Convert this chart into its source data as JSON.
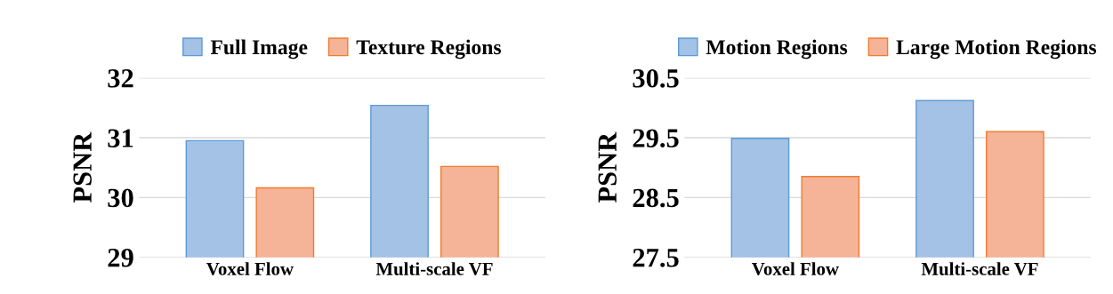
{
  "chart_data": [
    {
      "type": "bar",
      "ylabel": "PSNR",
      "categories": [
        "Voxel Flow",
        "Multi-scale VF"
      ],
      "ylim": [
        29,
        32
      ],
      "yticks": [
        29,
        30,
        31,
        32
      ],
      "grid": "y",
      "legend": "top",
      "series": [
        {
          "name": "Full Image",
          "color": "#a4c1e6",
          "values": [
            30.95,
            31.54
          ]
        },
        {
          "name": "Texture Regions",
          "color": "#f5b397",
          "values": [
            30.16,
            30.52
          ]
        }
      ]
    },
    {
      "type": "bar",
      "ylabel": "PSNR",
      "categories": [
        "Voxel Flow",
        "Multi-scale VF"
      ],
      "ylim": [
        27.5,
        30.5
      ],
      "yticks": [
        27.5,
        28.5,
        29.5,
        30.5
      ],
      "grid": "y",
      "legend": "top",
      "series": [
        {
          "name": "Motion Regions",
          "color": "#a4c1e6",
          "values": [
            29.49,
            30.12
          ]
        },
        {
          "name": "Large Motion Regions",
          "color": "#f5b397",
          "values": [
            28.85,
            29.6
          ]
        }
      ]
    }
  ]
}
